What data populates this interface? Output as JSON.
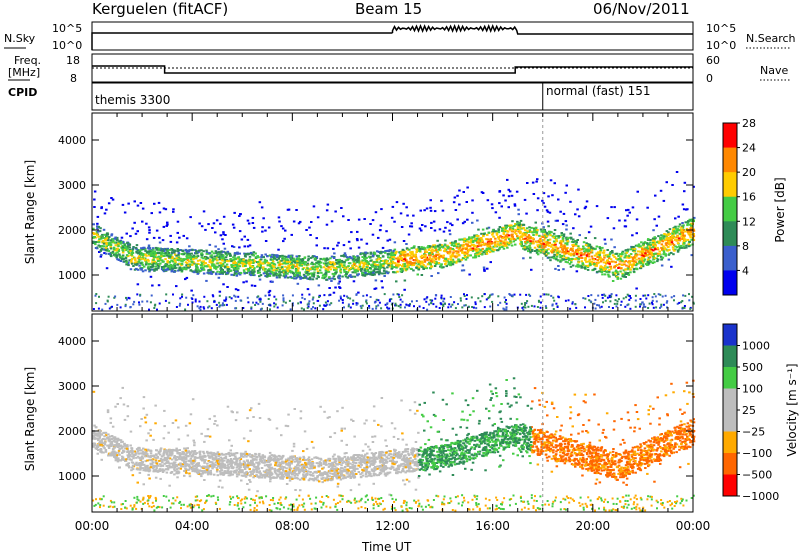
{
  "header": {
    "station": "Kerguelen (fitACF)",
    "beam": "Beam 15",
    "date": "06/Nov/2011"
  },
  "noise_panel": {
    "left_label": "N.Sky",
    "right_label": "N.Search",
    "left_ticks": [
      "10^5",
      "10^0"
    ],
    "right_ticks": [
      "10^5",
      "10^0"
    ]
  },
  "freq_panel": {
    "left_label_1": "Freq.",
    "left_label_2": "[MHz]",
    "right_label": "Nave",
    "left_ticks": [
      "18",
      "8"
    ],
    "right_ticks": [
      "60",
      "0"
    ]
  },
  "cpid_panel": {
    "label": "CPID",
    "modes": [
      {
        "name": "themis 3300",
        "start_hour": 0
      },
      {
        "name": "normal (fast) 151",
        "start_hour": 18
      }
    ]
  },
  "chart_data": [
    {
      "type": "heatmap",
      "name": "power",
      "ylabel": "Slant Range [km]",
      "yticks": [
        "1000",
        "2000",
        "3000",
        "4000"
      ],
      "ylim": [
        200,
        4600
      ],
      "xlim": [
        0,
        24
      ],
      "colorbar_label": "Power [dB]",
      "colorbar_ticks": [
        "4",
        "8",
        "12",
        "16",
        "20",
        "24",
        "28"
      ],
      "colors": [
        "#0000ee",
        "#3a5fcd",
        "#2e8b57",
        "#44cc44",
        "#ffcc00",
        "#ff8800",
        "#ff0000"
      ]
    },
    {
      "type": "heatmap",
      "name": "velocity",
      "ylabel": "Slant Range [km]",
      "yticks": [
        "1000",
        "2000",
        "3000",
        "4000"
      ],
      "ylim": [
        200,
        4600
      ],
      "xlim": [
        0,
        24
      ],
      "colorbar_label": "Velocity [m s⁻¹]",
      "colorbar_ticks": [
        "1000",
        "500",
        "100",
        "25",
        "−25",
        "−100",
        "−500",
        "−1000"
      ],
      "colors": [
        "#1a33cc",
        "#2e8b57",
        "#44cc44",
        "#bdbdbd",
        "#bdbdbd",
        "#ffaa00",
        "#ff6600",
        "#ff0000"
      ]
    }
  ],
  "xaxis": {
    "label": "Time UT",
    "ticks": [
      "00:00",
      "04:00",
      "08:00",
      "12:00",
      "16:00",
      "20:00",
      "00:00"
    ]
  }
}
